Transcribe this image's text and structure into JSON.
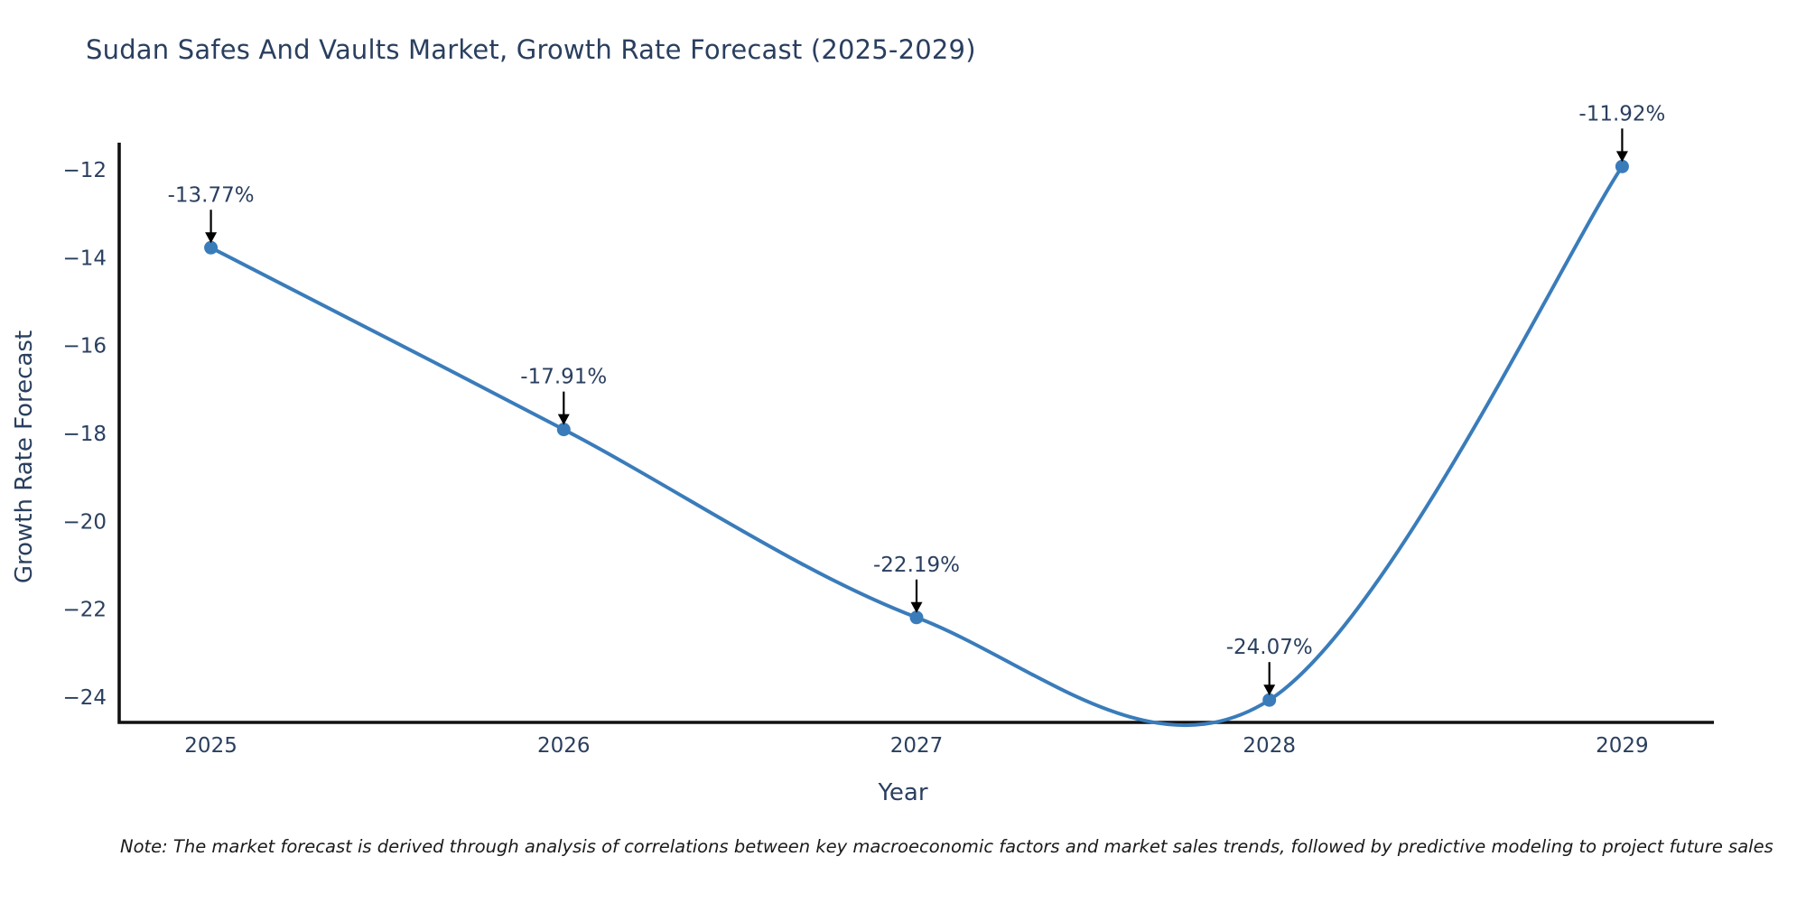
{
  "chart_data": {
    "type": "line",
    "line_shape": "spline",
    "title": "Sudan Safes And Vaults Market, Growth Rate Forecast (2025-2029)",
    "xlabel": "Year",
    "ylabel": "Growth Rate Forecast",
    "x": [
      2025,
      2026,
      2027,
      2028,
      2029
    ],
    "values": [
      -13.77,
      -17.91,
      -22.19,
      -24.07,
      -11.92
    ],
    "point_labels": [
      "-13.77%",
      "-17.91%",
      "-22.19%",
      "-24.07%",
      "-11.92%"
    ],
    "xticks": {
      "values": [
        2025,
        2026,
        2027,
        2028,
        2029
      ],
      "labels": [
        "2025",
        "2026",
        "2027",
        "2028",
        "2029"
      ]
    },
    "yticks": {
      "values": [
        -12,
        -14,
        -16,
        -18,
        -20,
        -22,
        -24
      ],
      "labels": [
        "−12",
        "−14",
        "−16",
        "−18",
        "−20",
        "−22",
        "−24"
      ]
    },
    "xlim": [
      2024.74,
      2029.26
    ],
    "ylim": [
      -24.58,
      -11.42
    ],
    "grid": false,
    "legend": "none",
    "colors": {
      "line": "#3a7cba",
      "marker": "#3a7cba",
      "axis": "#111111",
      "text": "#2a3f5f",
      "arrow": "#000000",
      "background": "#ffffff"
    },
    "note": "Note: The market forecast is derived through analysis of correlations between key macroeconomic factors and market sales trends, followed by predictive modeling to project future sales"
  }
}
